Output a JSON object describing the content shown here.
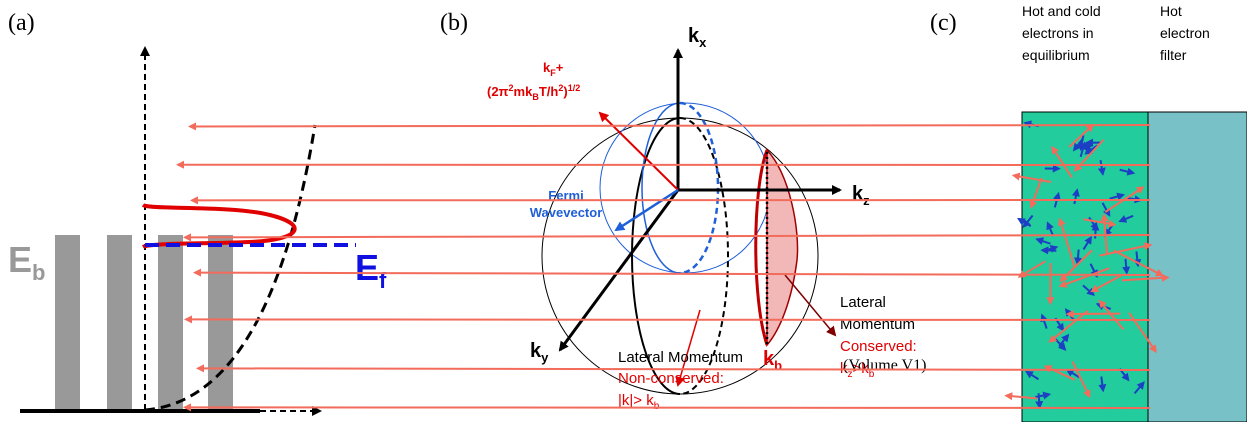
{
  "panel_a": {
    "label": "(a)",
    "barrier_energy": {
      "symbol": "E",
      "subscript": "b"
    },
    "fermi_energy": {
      "symbol": "E",
      "subscript": "f"
    }
  },
  "panel_b": {
    "label": "(b)",
    "kx": {
      "symbol": "k",
      "subscript": "x"
    },
    "kz": {
      "symbol": "k",
      "subscript": "z"
    },
    "ky": {
      "symbol": "k",
      "subscript": "y"
    },
    "kb": {
      "symbol": "k",
      "subscript": "b"
    },
    "kf_line": {
      "symbol": "k",
      "subscript": "F",
      "suffix": "+"
    },
    "formula": [
      "(2π",
      "2",
      "mk",
      "B",
      "T/h",
      "2",
      ")",
      "1/2"
    ],
    "fermi": [
      "Fermi",
      "Wavevector"
    ],
    "conserved": {
      "lines": [
        "Lateral",
        "Momentum"
      ],
      "status": "Conserved:",
      "condition": [
        "k",
        "z",
        ">k",
        "b"
      ],
      "volume": "(Volume V1)"
    },
    "non_conserved": {
      "line": "Lateral Momentum",
      "status": "Non-conserved:",
      "condition": [
        "|k|> k",
        "b"
      ]
    }
  },
  "panel_c": {
    "label": "(c)",
    "left_header": [
      "Hot and cold",
      "electrons in",
      "equilibrium"
    ],
    "right_header": [
      "Hot",
      "electron",
      "filter"
    ]
  }
}
